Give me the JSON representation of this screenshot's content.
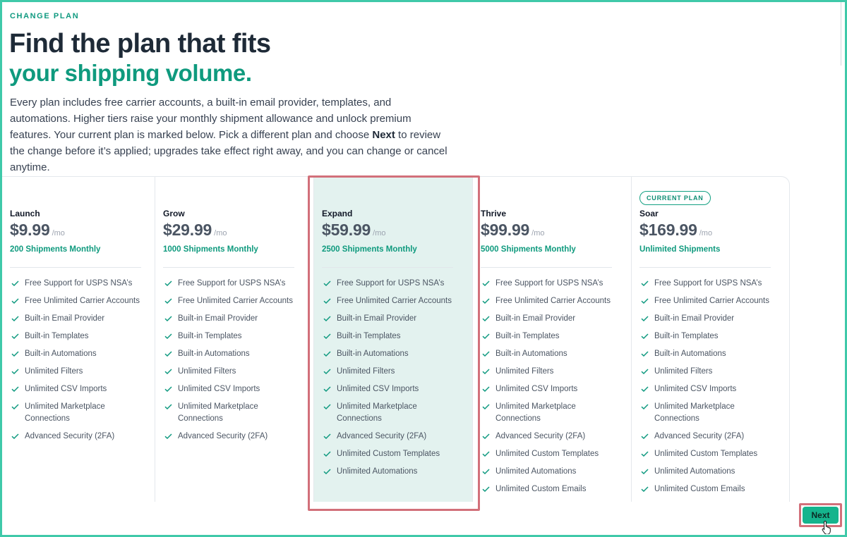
{
  "header": {
    "eyebrow": "CHANGE PLAN",
    "title_line1": "Find the plan that fits",
    "title_line2": "your shipping volume.",
    "intro_part1": "Every plan includes free carrier accounts, a built-in email provider, templates, and automations. Higher tiers raise your monthly shipment allowance and unlock premium features. Your current plan is marked below. Pick a different plan and choose ",
    "intro_bold": "Next",
    "intro_part2": " to review the change before it’s applied; upgrades take effect right away, and you can change or cancel anytime."
  },
  "plans": [
    {
      "name": "Launch",
      "price": "$9.99",
      "period": "/mo",
      "shipments": "200 Shipments Monthly",
      "badge": "",
      "features": [
        "Free Support for USPS NSA’s",
        "Free Unlimited Carrier Accounts",
        "Built-in Email Provider",
        "Built-in Templates",
        "Built-in Automations",
        "Unlimited Filters",
        "Unlimited CSV Imports",
        "Unlimited Marketplace Connections",
        "Advanced Security (2FA)"
      ]
    },
    {
      "name": "Grow",
      "price": "$29.99",
      "period": "/mo",
      "shipments": "1000 Shipments Monthly",
      "badge": "",
      "features": [
        "Free Support for USPS NSA’s",
        "Free Unlimited Carrier Accounts",
        "Built-in Email Provider",
        "Built-in Templates",
        "Built-in Automations",
        "Unlimited Filters",
        "Unlimited CSV Imports",
        "Unlimited Marketplace Connections",
        "Advanced Security (2FA)"
      ]
    },
    {
      "name": "Expand",
      "price": "$59.99",
      "period": "/mo",
      "shipments": "2500 Shipments Monthly",
      "badge": "",
      "features": [
        "Free Support for USPS NSA’s",
        "Free Unlimited Carrier Accounts",
        "Built-in Email Provider",
        "Built-in Templates",
        "Built-in Automations",
        "Unlimited Filters",
        "Unlimited CSV Imports",
        "Unlimited Marketplace Connections",
        "Advanced Security (2FA)",
        "Unlimited Custom Templates",
        "Unlimited Automations"
      ]
    },
    {
      "name": "Thrive",
      "price": "$99.99",
      "period": "/mo",
      "shipments": "5000 Shipments Monthly",
      "badge": "",
      "features": [
        "Free Support for USPS NSA’s",
        "Free Unlimited Carrier Accounts",
        "Built-in Email Provider",
        "Built-in Templates",
        "Built-in Automations",
        "Unlimited Filters",
        "Unlimited CSV Imports",
        "Unlimited Marketplace Connections",
        "Advanced Security (2FA)",
        "Unlimited Custom Templates",
        "Unlimited Automations",
        "Unlimited Custom Emails"
      ]
    },
    {
      "name": "Soar",
      "price": "$169.99",
      "period": "/mo",
      "shipments": "Unlimited Shipments",
      "badge": "CURRENT PLAN",
      "features": [
        "Free Support for USPS NSA’s",
        "Free Unlimited Carrier Accounts",
        "Built-in Email Provider",
        "Built-in Templates",
        "Built-in Automations",
        "Unlimited Filters",
        "Unlimited CSV Imports",
        "Unlimited Marketplace Connections",
        "Advanced Security (2FA)",
        "Unlimited Custom Templates",
        "Unlimited Automations",
        "Unlimited Custom Emails"
      ]
    }
  ],
  "selected_plan": "Expand",
  "footer": {
    "next_label": "Next"
  },
  "colors": {
    "accent": "#0f9a7e",
    "frame": "#3fc9a9",
    "selected_bg": "#e3f2ef",
    "highlight": "#d2707a",
    "button": "#15b48d"
  }
}
